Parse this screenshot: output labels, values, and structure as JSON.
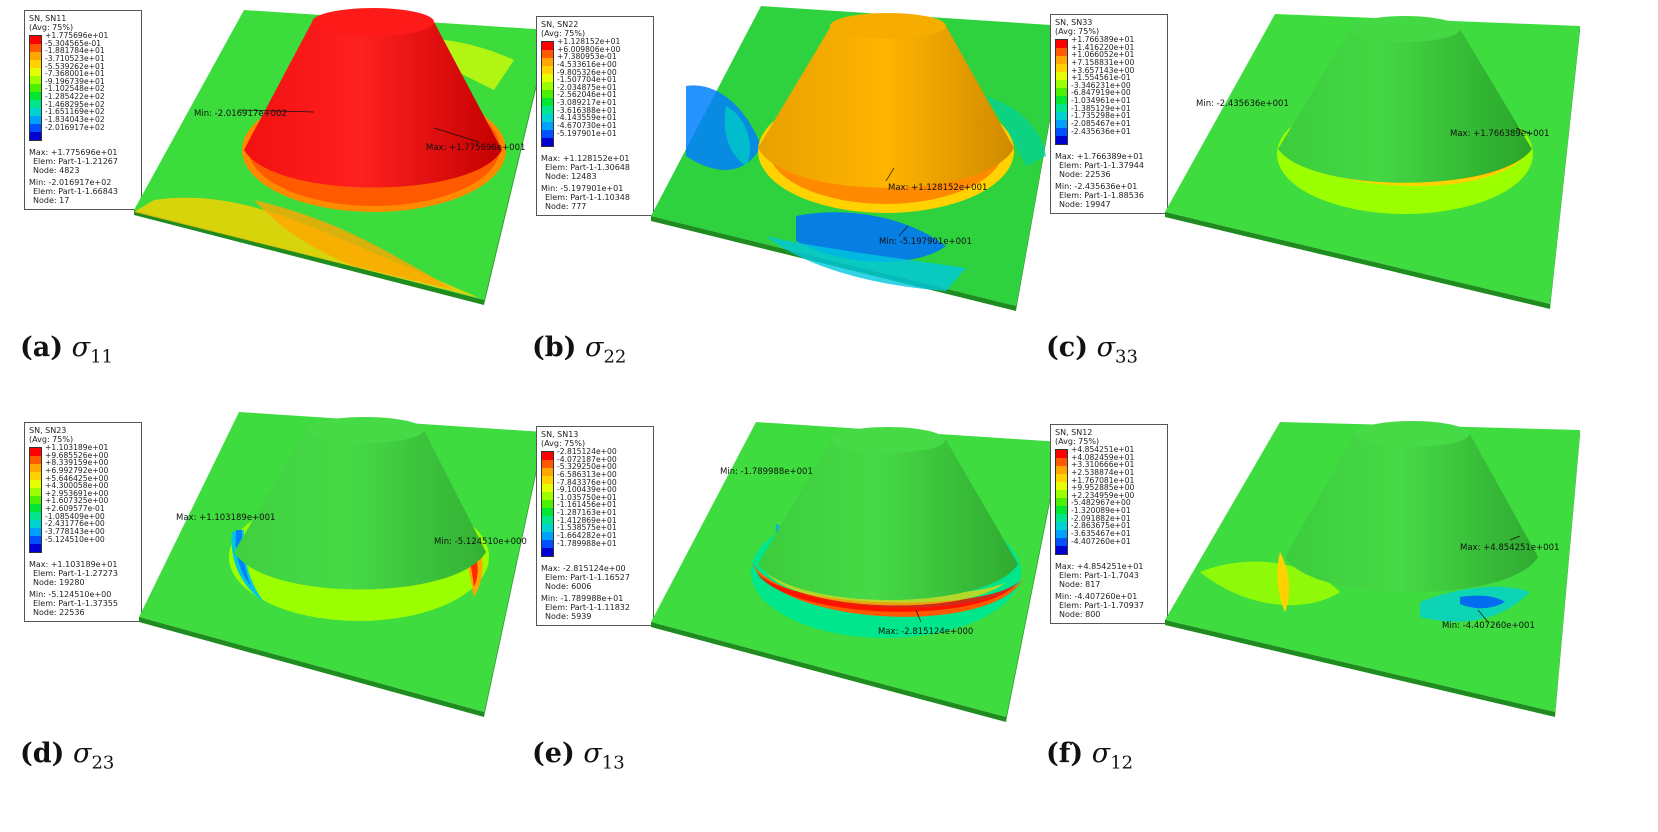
{
  "panel_a": {
    "legend": {
      "title_line1": "SN, SN11",
      "title_line2": "(Avg: 75%)",
      "ticks": [
        "+1.775696e+01",
        "-5.304565e-01",
        "-1.881784e+01",
        "-3.710523e+01",
        "-5.539262e+01",
        "-7.368001e+01",
        "-9.196739e+01",
        "-1.102548e+02",
        "-1.285422e+02",
        "-1.468295e+02",
        "-1.651169e+02",
        "-1.834043e+02",
        "-2.016917e+02"
      ],
      "max_line": "Max: +1.775696e+01",
      "max_elem": "Elem: Part-1-1.21267",
      "max_node": "Node: 4823",
      "min_line": "Min: -2.016917e+02",
      "min_elem": "Elem: Part-1-1.66843",
      "min_node": "Node: 17"
    },
    "min_annot": "Min: -2.016917e+002",
    "max_annot": "Max: +1.775696e+001",
    "caption_letter": "(a)",
    "caption_sub": "11"
  },
  "panel_b": {
    "legend": {
      "title_line1": "SN, SN22",
      "title_line2": "(Avg: 75%)",
      "ticks": [
        "+1.128152e+01",
        "+6.009806e+00",
        "+7.380953e-01",
        "-4.533616e+00",
        "-9.805326e+00",
        "-1.507704e+01",
        "-2.034875e+01",
        "-2.562046e+01",
        "-3.089217e+01",
        "-3.616388e+01",
        "-4.143559e+01",
        "-4.670730e+01",
        "-5.197901e+01"
      ],
      "max_line": "Max: +1.128152e+01",
      "max_elem": "Elem: Part-1-1.30648",
      "max_node": "Node: 12483",
      "min_line": "Min: -5.197901e+01",
      "min_elem": "Elem: Part-1-1.10348",
      "min_node": "Node: 777"
    },
    "max_annot": "Max: +1.128152e+001",
    "min_annot": "Min: -5.197901e+001",
    "caption_letter": "(b)",
    "caption_sub": "22"
  },
  "panel_c": {
    "legend": {
      "title_line1": "SN, SN33",
      "title_line2": "(Avg: 75%)",
      "ticks": [
        "+1.766389e+01",
        "+1.416220e+01",
        "+1.066052e+01",
        "+7.158831e+00",
        "+3.657143e+00",
        "+1.554561e-01",
        "-3.346231e+00",
        "-6.847919e+00",
        "-1.034961e+01",
        "-1.385129e+01",
        "-1.735298e+01",
        "-2.085467e+01",
        "-2.435636e+01"
      ],
      "max_line": "Max: +1.766389e+01",
      "max_elem": "Elem: Part-1-1.37944",
      "max_node": "Node: 22536",
      "min_line": "Min: -2.435636e+01",
      "min_elem": "Elem: Part-1-1.88536",
      "min_node": "Node: 19947"
    },
    "min_annot": "Min: -2.435636e+001",
    "max_annot": "Max: +1.766389e+001",
    "caption_letter": "(c)",
    "caption_sub": "33"
  },
  "panel_d": {
    "legend": {
      "title_line1": "SN, SN23",
      "title_line2": "(Avg: 75%)",
      "ticks": [
        "+1.103189e+01",
        "+9.685526e+00",
        "+8.339159e+00",
        "+6.992792e+00",
        "+5.646425e+00",
        "+4.300058e+00",
        "+2.953691e+00",
        "+1.607325e+00",
        "+2.609577e-01",
        "-1.085409e+00",
        "-2.431776e+00",
        "-3.778143e+00",
        "-5.124510e+00"
      ],
      "max_line": "Max: +1.103189e+01",
      "max_elem": "Elem: Part-1-1.27273",
      "max_node": "Node: 19280",
      "min_line": "Min: -5.124510e+00",
      "min_elem": "Elem: Part-1-1.37355",
      "min_node": "Node: 22536"
    },
    "max_annot": "Max: +1.103189e+001",
    "min_annot": "Min: -5.124510e+000",
    "caption_letter": "(d)",
    "caption_sub": "23"
  },
  "panel_e": {
    "legend": {
      "title_line1": "SN, SN13",
      "title_line2": "(Avg: 75%)",
      "ticks": [
        "-2.815124e+00",
        "-4.072187e+00",
        "-5.329250e+00",
        "-6.586313e+00",
        "-7.843376e+00",
        "-9.100439e+00",
        "-1.035750e+01",
        "-1.161456e+01",
        "-1.287163e+01",
        "-1.412869e+01",
        "-1.538575e+01",
        "-1.664282e+01",
        "-1.789988e+01"
      ],
      "max_line": "Max: -2.815124e+00",
      "max_elem": "Elem: Part-1-1.16527",
      "max_node": "Node: 6006",
      "min_line": "Min: -1.789988e+01",
      "min_elem": "Elem: Part-1-1.11832",
      "min_node": "Node: 5939"
    },
    "min_annot": "Min: -1.789988e+001",
    "max_annot": "Max: -2.815124e+000",
    "caption_letter": "(e)",
    "caption_sub": "13"
  },
  "panel_f": {
    "legend": {
      "title_line1": "SN, SN12",
      "title_line2": "(Avg: 75%)",
      "ticks": [
        "+4.854251e+01",
        "+4.082459e+01",
        "+3.310666e+01",
        "+2.538874e+01",
        "+1.767081e+01",
        "+9.952885e+00",
        "+2.234959e+00",
        "-5.482967e+00",
        "-1.320089e+01",
        "-2.091882e+01",
        "-2.863675e+01",
        "-3.635467e+01",
        "-4.407260e+01"
      ],
      "max_line": "Max: +4.854251e+01",
      "max_elem": "Elem: Part-1-1.7043",
      "max_node": "Node: 817",
      "min_line": "Min: -4.407260e+01",
      "min_elem": "Elem: Part-1-1.70937",
      "min_node": "Node: 800"
    },
    "max_annot": "Max: +4.854251e+001",
    "min_annot": "Min: -4.407260e+001",
    "caption_letter": "(f)",
    "caption_sub": "12"
  },
  "sigma": "σ",
  "colors": {
    "contour_scale": [
      "#ff0000",
      "#ff5a00",
      "#ffa600",
      "#ffd200",
      "#e6ff00",
      "#9cff00",
      "#4cf000",
      "#00e632",
      "#00e68c",
      "#00d2d2",
      "#00a0ff",
      "#0050ff",
      "#0000d2"
    ],
    "plate_green": "#2ecc2e"
  }
}
